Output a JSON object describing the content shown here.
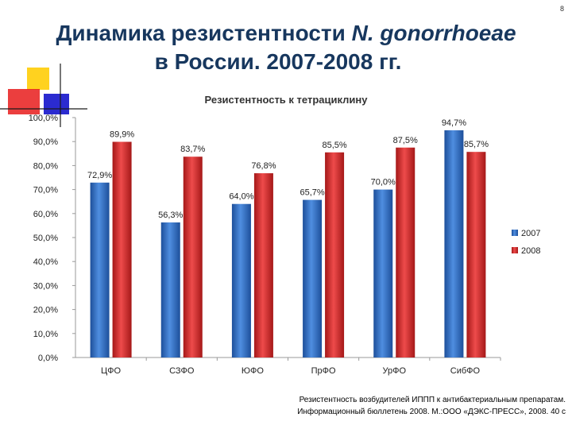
{
  "slide": {
    "number": "8",
    "title_line1_plain": "Динамика резистентности ",
    "title_line1_italic": "N. gonorrhoeae",
    "title_line2": "в России. 2007-2008 гг.",
    "source_line1": "Резистентность возбудителей ИППП к антибактериальным препаратам.",
    "source_line2": "Информационный бюллетень 2008. М.:ООО «ДЭКС-ПРЕСС», 2008. 40 с"
  },
  "colors": {
    "title": "#17375e",
    "series_2007": "#2f6ec1",
    "series_2008": "#d42a2a",
    "deco_yellow": "#ffd21f",
    "deco_red": "#e81c1c",
    "deco_blue": "#2b2bd0"
  },
  "chart_data": {
    "type": "bar",
    "title": "Резистентность к тетрациклину",
    "categories": [
      "ЦФО",
      "СЗФО",
      "ЮФО",
      "ПрФО",
      "УрФО",
      "СибФО"
    ],
    "series": [
      {
        "name": "2007",
        "values": [
          72.9,
          56.3,
          64.0,
          65.7,
          70.0,
          94.7
        ],
        "labels": [
          "72,9%",
          "56,3%",
          "64,0%",
          "65,7%",
          "70,0%",
          "94,7%"
        ]
      },
      {
        "name": "2008",
        "values": [
          89.9,
          83.7,
          76.8,
          85.5,
          87.5,
          85.7
        ],
        "labels": [
          "89,9%",
          "83,7%",
          "76,8%",
          "85,5%",
          "87,5%",
          "85,7%"
        ]
      }
    ],
    "ylim": [
      0,
      100
    ],
    "y_ticks": [
      0,
      10,
      20,
      30,
      40,
      50,
      60,
      70,
      80,
      90,
      100
    ],
    "y_tick_labels": [
      "0,0%",
      "10,0%",
      "20,0%",
      "30,0%",
      "40,0%",
      "50,0%",
      "60,0%",
      "70,0%",
      "80,0%",
      "90,0%",
      "100,0%"
    ],
    "xlabel": "",
    "ylabel": "",
    "grid": false,
    "legend_position": "right"
  }
}
